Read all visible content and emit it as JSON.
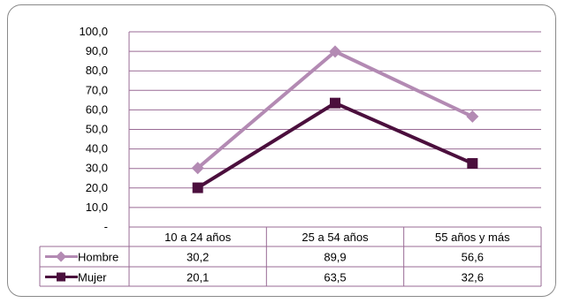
{
  "chart_data": {
    "type": "line",
    "title": "",
    "xlabel": "",
    "ylabel": "",
    "ylim": [
      0,
      100
    ],
    "yticks": [
      "100,0",
      "90,0",
      "80,0",
      "70,0",
      "60,0",
      "50,0",
      "40,0",
      "30,0",
      "20,0",
      "10,0",
      "-"
    ],
    "categories": [
      "10 a 24 años",
      "25 a 54 años",
      "55 años y más"
    ],
    "series": [
      {
        "name": "Hombre",
        "values": [
          30.2,
          89.9,
          56.6
        ],
        "labels": [
          "30,2",
          "89,9",
          "56,6"
        ],
        "color": "#b38ab3",
        "marker": "diamond"
      },
      {
        "name": "Mujer",
        "values": [
          20.1,
          63.5,
          32.6
        ],
        "labels": [
          "20,1",
          "63,5",
          "32,6"
        ],
        "color": "#4b0f3d",
        "marker": "square"
      }
    ],
    "grid": true,
    "legend": "data-table"
  }
}
